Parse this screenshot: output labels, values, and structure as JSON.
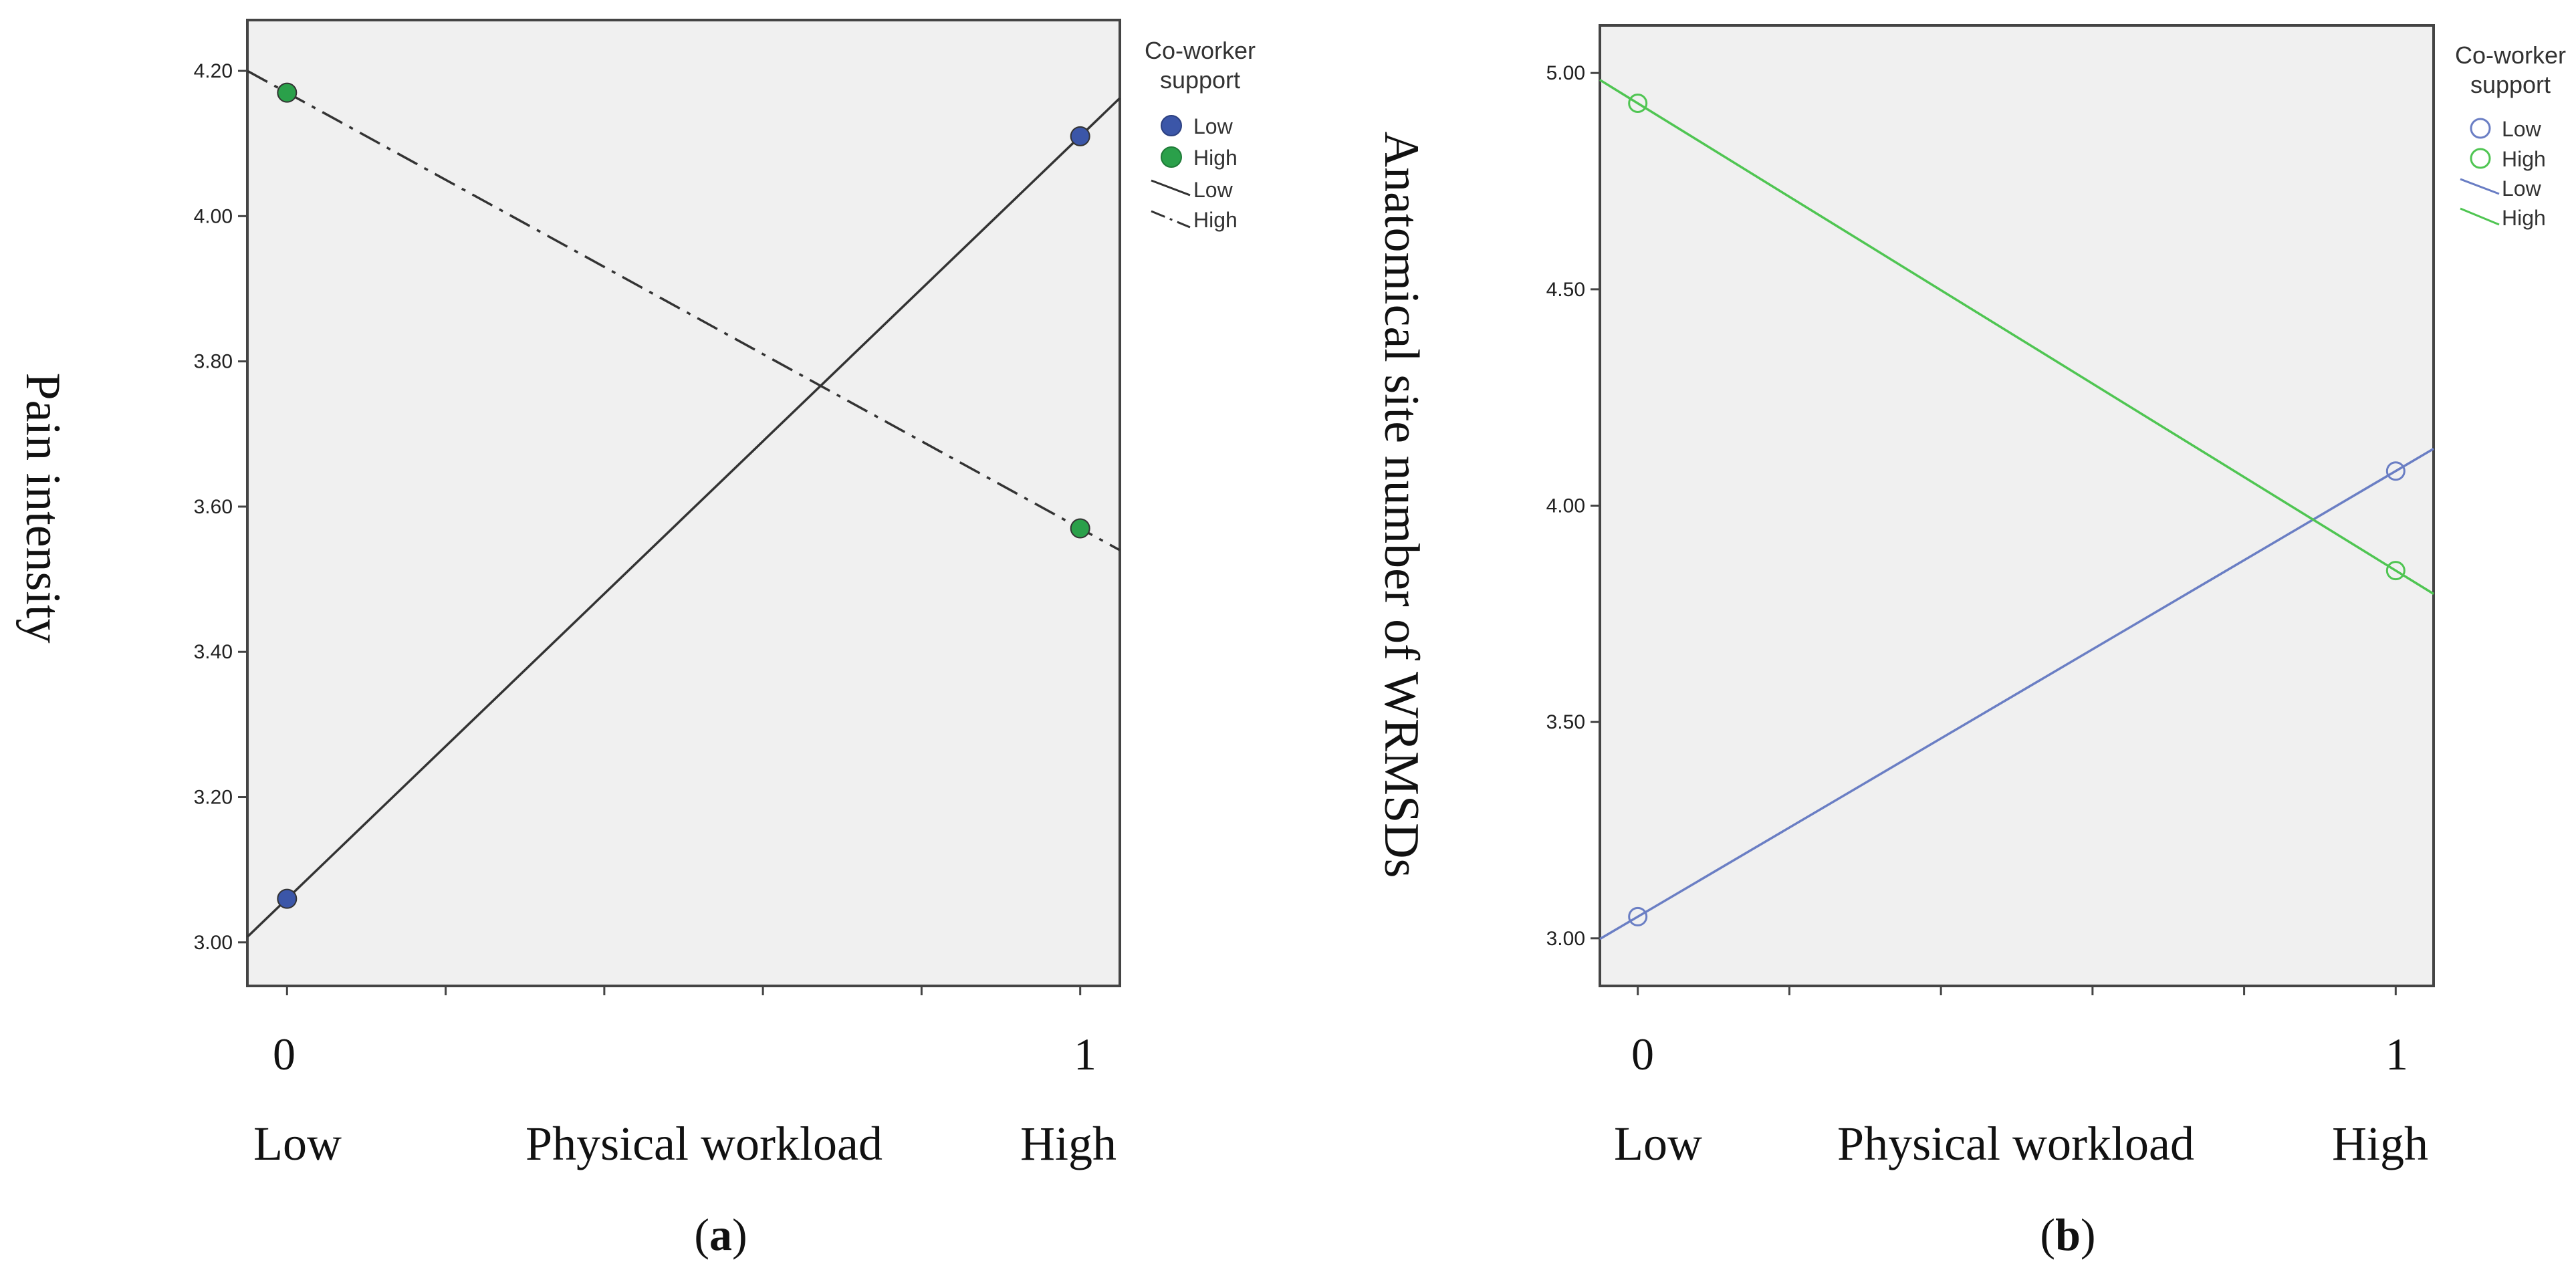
{
  "chart_data": [
    {
      "type": "line",
      "panel_label": "a",
      "ylabel": "Pain intensity",
      "xlabel": "Physical workload",
      "x_category_low": "Low",
      "x_category_high": "High",
      "x_ticks": [
        "0",
        "1"
      ],
      "xlim": [
        -0.05,
        1.05
      ],
      "ylim": [
        2.94,
        4.27
      ],
      "y_ticks": [
        "3.00",
        "3.20",
        "3.40",
        "3.60",
        "3.80",
        "4.00",
        "4.20"
      ],
      "legend_title": "Co-worker support",
      "legend_entries": {
        "marker_low": "Low",
        "marker_high": "High",
        "line_low": "Low",
        "line_high": "High"
      },
      "series": [
        {
          "name": "Low",
          "x": [
            0,
            1
          ],
          "values": [
            3.06,
            4.11
          ],
          "line_style": "solid",
          "color": "#333333",
          "marker_color": "#3b56a8",
          "marker": "filled-circle"
        },
        {
          "name": "High",
          "x": [
            0,
            1
          ],
          "values": [
            4.17,
            3.57
          ],
          "line_style": "dash-dot",
          "color": "#333333",
          "marker_color": "#2aa04a",
          "marker": "filled-circle"
        }
      ],
      "plot_background": "#f0f0f0"
    },
    {
      "type": "line",
      "panel_label": "b",
      "ylabel": "Anatomical site number of WRMSDs",
      "xlabel": "Physical workload",
      "x_category_low": "Low",
      "x_category_high": "High",
      "x_ticks": [
        "0",
        "1"
      ],
      "xlim": [
        -0.05,
        1.05
      ],
      "ylim": [
        2.89,
        5.11
      ],
      "y_ticks": [
        "3.00",
        "3.50",
        "4.00",
        "4.50",
        "5.00"
      ],
      "legend_title": "Co-worker support",
      "legend_entries": {
        "marker_low": "Low",
        "marker_high": "High",
        "line_low": "Low",
        "line_high": "High"
      },
      "series": [
        {
          "name": "Low",
          "x": [
            0,
            1
          ],
          "values": [
            3.05,
            4.08
          ],
          "line_style": "solid",
          "color": "#6a7ec4",
          "marker_color": "#6a7ec4",
          "marker": "open-circle"
        },
        {
          "name": "High",
          "x": [
            0,
            1
          ],
          "values": [
            4.93,
            3.85
          ],
          "line_style": "solid",
          "color": "#4fc552",
          "marker_color": "#4fc552",
          "marker": "open-circle"
        }
      ],
      "plot_background": "#f0f0f0"
    }
  ]
}
